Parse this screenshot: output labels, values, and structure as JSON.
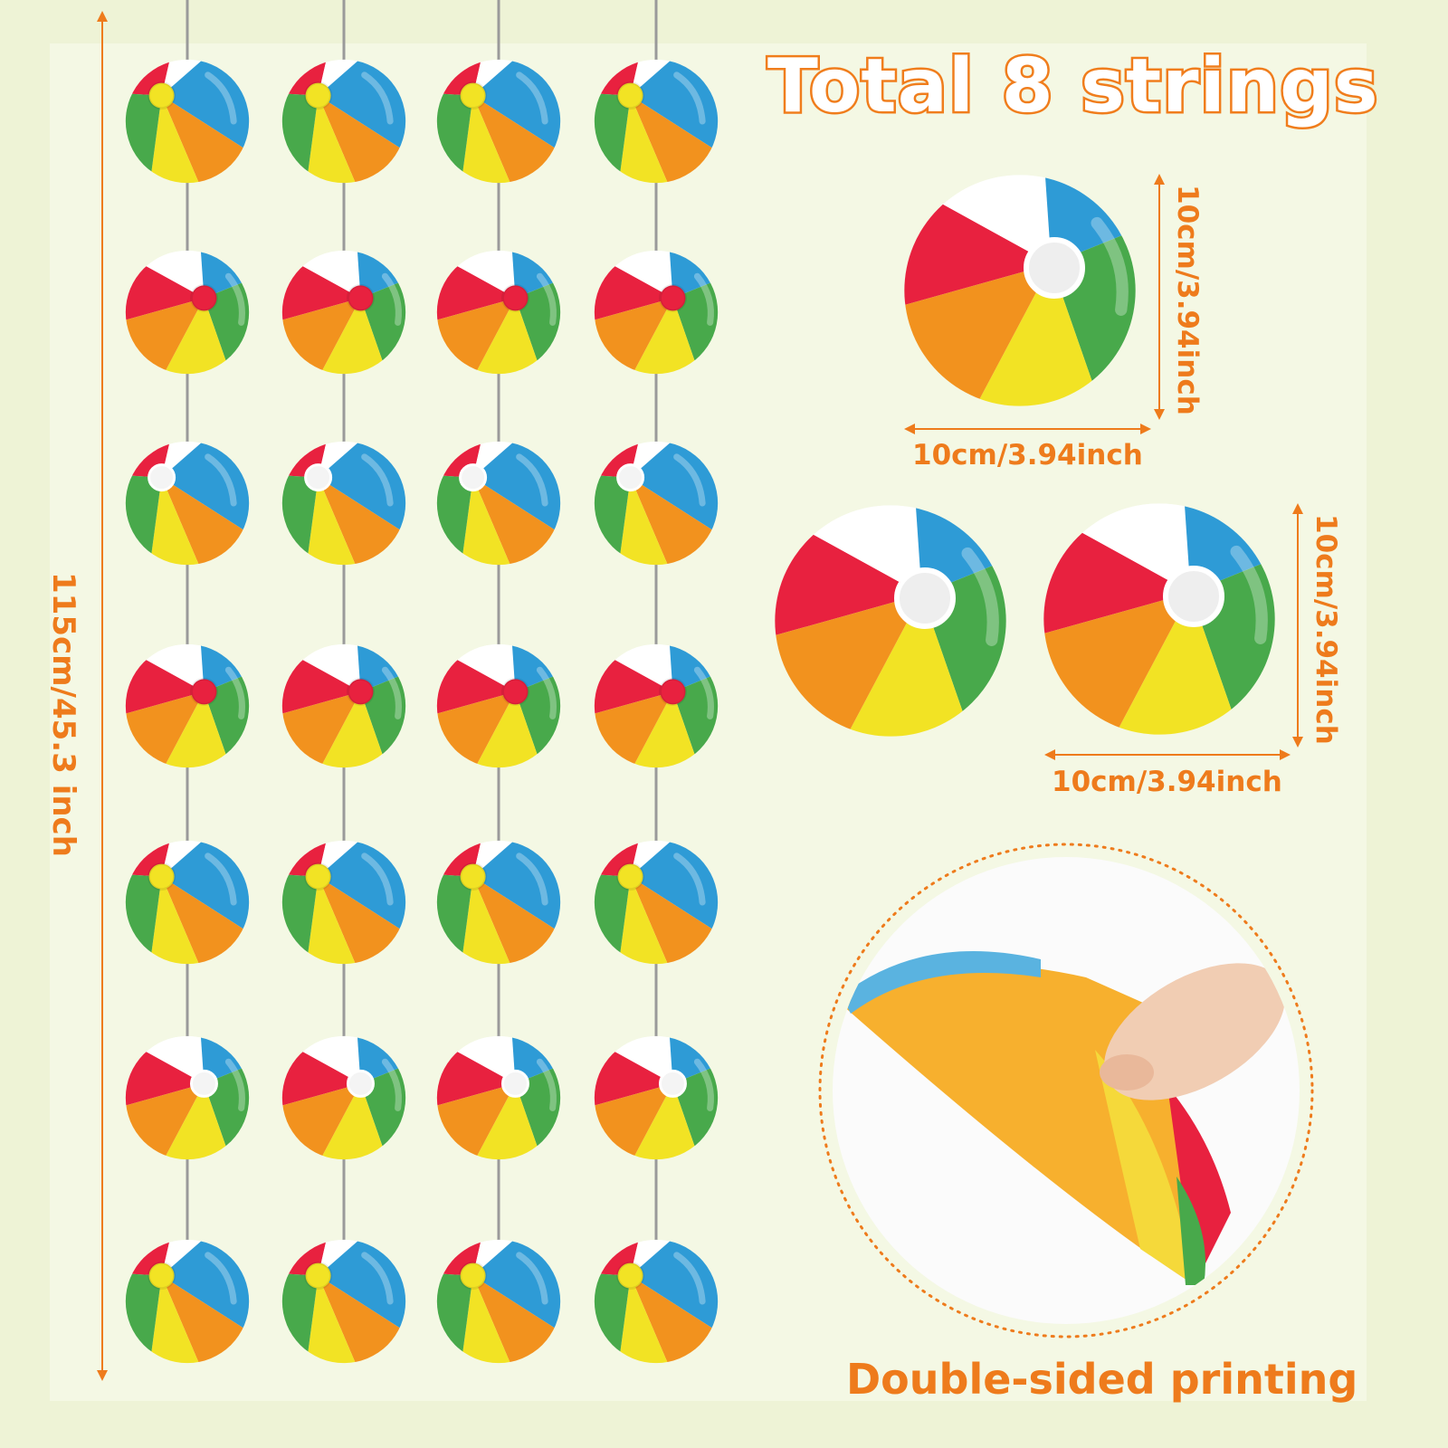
{
  "title": "Total 8 strings",
  "total_length_label": "115cm/45.3 inch",
  "single_ball": {
    "width_label": "10cm/3.94inch",
    "height_label": "10cm/3.94inch"
  },
  "pair_balls": {
    "width_label": "10cm/3.94inch",
    "height_label": "10cm/3.94inch"
  },
  "caption": "Double-sided printing",
  "colors": {
    "accent": "#ee7b1c",
    "red": "#e8213f",
    "orange": "#f2921e",
    "yellow": "#f2e324",
    "green": "#48a94b",
    "blue": "#2e9bd6",
    "string": "#9a9a9a"
  },
  "grid": {
    "columns": 4,
    "rows": 7
  }
}
